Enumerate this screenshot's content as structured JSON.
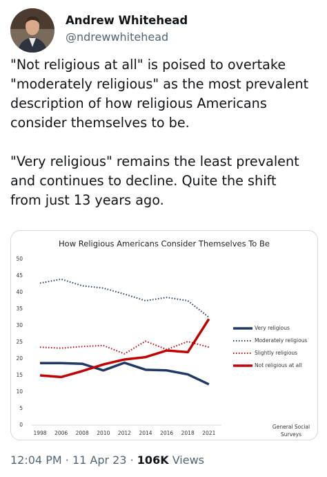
{
  "header": {
    "name": "Andrew Whitehead",
    "handle": "@ndrewwhitehead"
  },
  "tweet": {
    "paragraphs": [
      [
        "\"Not religious at all\" is poised to overtake",
        "\"moderately religious\" as the most prevalent",
        "description of how religious Americans",
        "consider themselves to be."
      ],
      [
        "\"Very religious\" remains the least prevalent",
        "and continues to decline. Quite the shift",
        "from just 13 years ago."
      ]
    ]
  },
  "chart_data": {
    "type": "line",
    "title": "How Religious Americans Consider Themselves To Be",
    "categories": [
      "1998",
      "2006",
      "2008",
      "2010",
      "2012",
      "2014",
      "2016",
      "2018",
      "2021"
    ],
    "series": [
      {
        "name": "Very religious",
        "color": "#1f3864",
        "style": "solid",
        "values": [
          18.7,
          18.7,
          18.5,
          16.5,
          18.8,
          16.7,
          16.5,
          15.3,
          12.3
        ]
      },
      {
        "name": "Moderately religious",
        "color": "#1f3864",
        "style": "dotted",
        "values": [
          42.8,
          44.0,
          42.0,
          41.3,
          39.5,
          37.5,
          38.5,
          37.5,
          32.5
        ]
      },
      {
        "name": "Slightly religious",
        "color": "#c00000",
        "style": "dotted",
        "values": [
          23.5,
          23.2,
          23.7,
          24.0,
          21.5,
          25.3,
          22.8,
          25.2,
          23.5
        ]
      },
      {
        "name": "Not religious at all",
        "color": "#c00000",
        "style": "solid",
        "values": [
          15.0,
          14.5,
          16.3,
          18.3,
          19.8,
          20.5,
          22.5,
          22.0,
          32.0
        ]
      }
    ],
    "ylim": [
      0,
      50
    ],
    "yticks": [
      0,
      5,
      10,
      15,
      20,
      25,
      30,
      35,
      40,
      45,
      50
    ],
    "grid": false,
    "legend": "right",
    "note_lines": [
      "General Social",
      "Surveys"
    ]
  },
  "footer": {
    "time": "12:04 PM",
    "separator": "·",
    "date": "11 Apr 23",
    "views": "106K",
    "views_label": "Views"
  }
}
